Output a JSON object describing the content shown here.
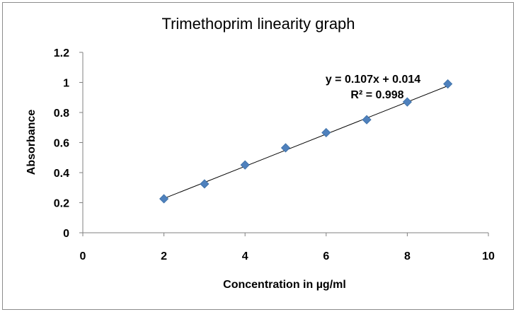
{
  "chart_data": {
    "type": "scatter",
    "title": "Trimethoprim linearity graph",
    "xlabel": "Concentration  in µg/ml",
    "ylabel": "Absorbance",
    "xlim": [
      0,
      10
    ],
    "ylim": [
      0,
      1.2
    ],
    "xticks": [
      "0",
      "2",
      "4",
      "6",
      "8",
      "10"
    ],
    "yticks": [
      "0",
      "0.2",
      "0.4",
      "0.6",
      "0.8",
      "1",
      "1.2"
    ],
    "grid": false,
    "legend": "none",
    "series": [
      {
        "x": [
          2,
          3,
          4,
          5,
          6,
          7,
          8,
          9
        ],
        "y": [
          0.226,
          0.325,
          0.451,
          0.565,
          0.666,
          0.752,
          0.87,
          0.99
        ]
      }
    ],
    "trendline": {
      "slope": 0.107,
      "intercept": 0.014,
      "x_range": [
        2,
        9
      ]
    },
    "annotations": {
      "equation": "y = 0.107x + 0.014",
      "r2": "R² = 0.998"
    },
    "colors": {
      "marker": "#4f81bd",
      "marker_stroke": "#3a6ea5",
      "trendline": "#000000",
      "axis": "#808080"
    }
  }
}
